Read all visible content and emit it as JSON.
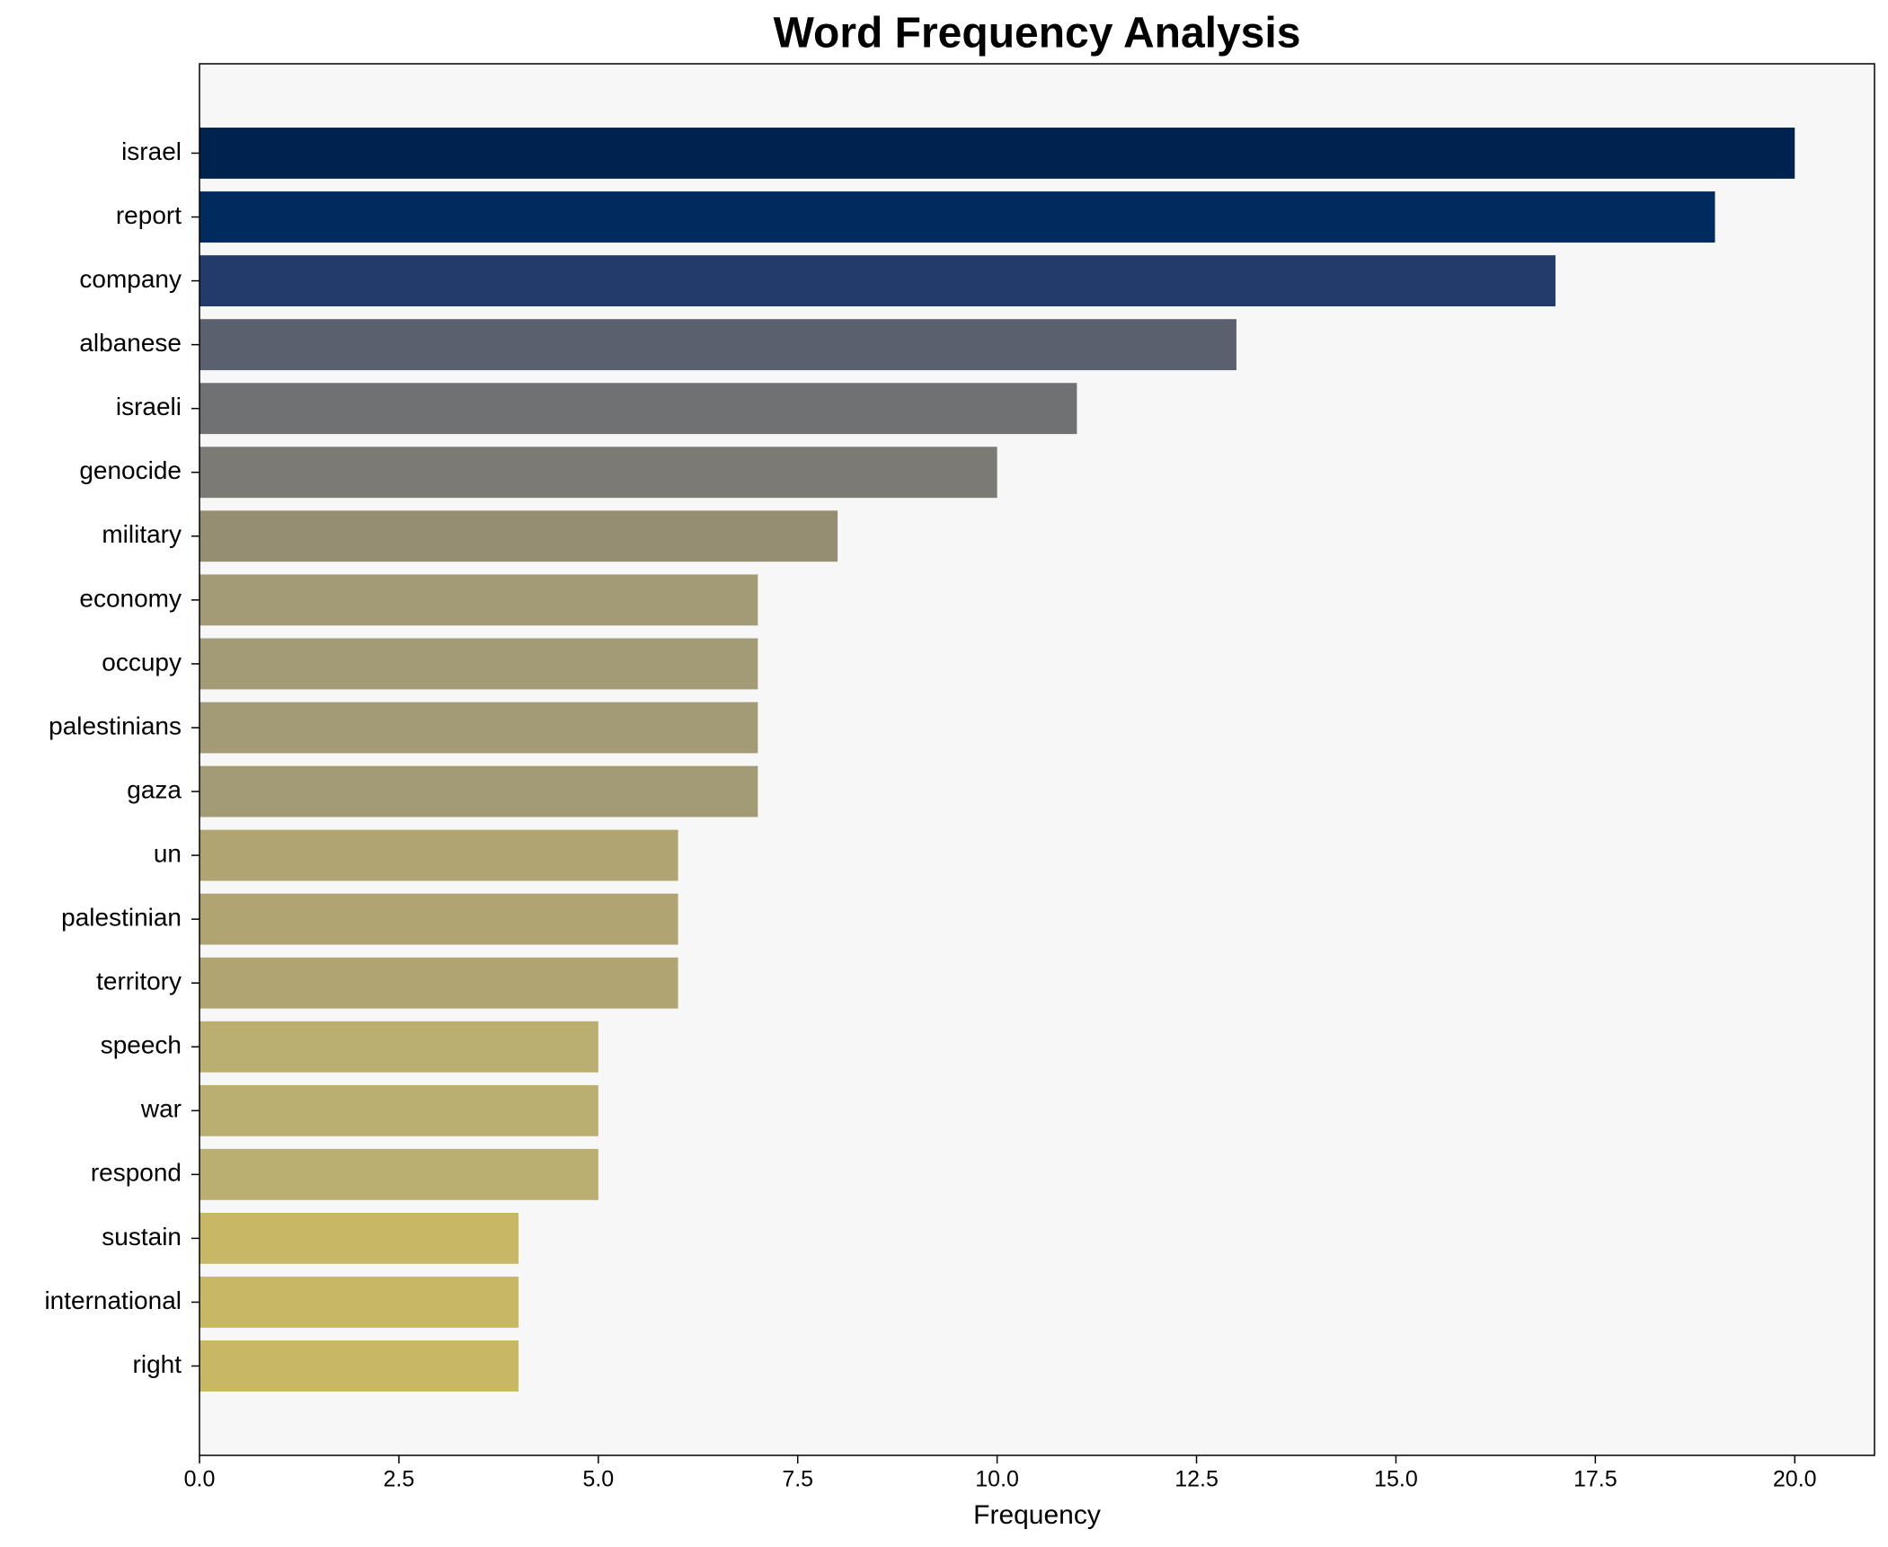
{
  "chart_data": {
    "type": "barh",
    "title": "Word Frequency Analysis",
    "xlabel": "Frequency",
    "categories": [
      "israel",
      "report",
      "company",
      "albanese",
      "israeli",
      "genocide",
      "military",
      "economy",
      "occupy",
      "palestinians",
      "gaza",
      "un",
      "palestinian",
      "territory",
      "speech",
      "war",
      "respond",
      "sustain",
      "international",
      "right"
    ],
    "values": [
      20,
      19,
      17,
      13,
      11,
      10,
      8,
      7,
      7,
      7,
      7,
      6,
      6,
      6,
      5,
      5,
      5,
      4,
      4,
      4
    ],
    "colors": [
      "#00224e",
      "#012a5f",
      "#233b6b",
      "#5b606e",
      "#707173",
      "#7c7a75",
      "#958e73",
      "#a39b76",
      "#a39b76",
      "#a39b76",
      "#a39b76",
      "#b0a572",
      "#b0a572",
      "#b0a572",
      "#bbae71",
      "#bbae71",
      "#bbae71",
      "#c8b866",
      "#c8b866",
      "#c8b866"
    ],
    "xlim": [
      0,
      21
    ],
    "xticks": [
      {
        "value": 0,
        "label": "0.0"
      },
      {
        "value": 2.5,
        "label": "2.5"
      },
      {
        "value": 5,
        "label": "5.0"
      },
      {
        "value": 7.5,
        "label": "7.5"
      },
      {
        "value": 10,
        "label": "10.0"
      },
      {
        "value": 12.5,
        "label": "12.5"
      },
      {
        "value": 15,
        "label": "15.0"
      },
      {
        "value": 17.5,
        "label": "17.5"
      },
      {
        "value": 20,
        "label": "20.0"
      }
    ],
    "grid": false
  }
}
